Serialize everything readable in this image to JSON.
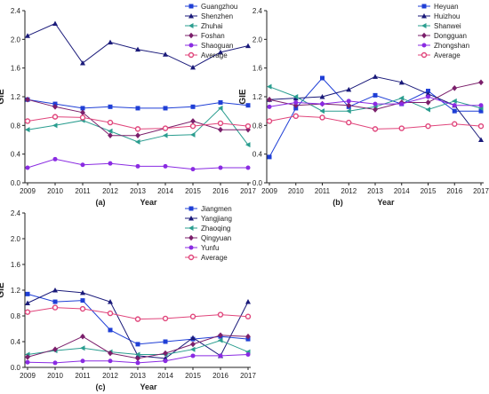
{
  "chart_data": [
    {
      "type": "line",
      "panel_label": "(a)",
      "xlabel": "Year",
      "ylabel": "GIE",
      "ylim": [
        0,
        2.4
      ],
      "yticks": [
        "0.0",
        "0.4",
        "0.8",
        "1.2",
        "1.6",
        "2.0",
        "2.4"
      ],
      "x": [
        "2009",
        "2010",
        "2011",
        "2012",
        "2013",
        "2014",
        "2015",
        "2016",
        "2017"
      ],
      "legend_position": "top-right",
      "series": [
        {
          "name": "Guangzhou",
          "color": "#1f3fd6",
          "marker": "square",
          "values": [
            1.16,
            1.1,
            1.04,
            1.06,
            1.04,
            1.04,
            1.06,
            1.12,
            1.08
          ]
        },
        {
          "name": "Shenzhen",
          "color": "#1a1a7a",
          "marker": "triangle-up",
          "values": [
            2.05,
            2.22,
            1.67,
            1.96,
            1.86,
            1.79,
            1.61,
            1.82,
            1.91
          ]
        },
        {
          "name": "Zhuhai",
          "color": "#2a9d8f",
          "marker": "triangle-left",
          "values": [
            0.74,
            0.8,
            0.87,
            0.72,
            0.57,
            0.66,
            0.67,
            1.04,
            0.53
          ]
        },
        {
          "name": "Foshan",
          "color": "#7b1f6b",
          "marker": "diamond",
          "values": [
            1.16,
            1.06,
            0.98,
            0.66,
            0.66,
            0.76,
            0.86,
            0.74,
            0.74
          ]
        },
        {
          "name": "Shaoguan",
          "color": "#8a2be2",
          "marker": "circle",
          "values": [
            0.21,
            0.33,
            0.25,
            0.27,
            0.23,
            0.23,
            0.19,
            0.21,
            0.21
          ]
        },
        {
          "name": "Average",
          "color": "#e0457b",
          "marker": "circle-open",
          "values": [
            0.86,
            0.92,
            0.91,
            0.84,
            0.75,
            0.76,
            0.79,
            0.83,
            0.79
          ]
        }
      ]
    },
    {
      "type": "line",
      "panel_label": "(b)",
      "xlabel": "Year",
      "ylabel": "GIE",
      "ylim": [
        0,
        2.4
      ],
      "yticks": [
        "0.0",
        "0.4",
        "0.8",
        "1.2",
        "1.6",
        "2.0",
        "2.4"
      ],
      "x": [
        "2009",
        "2010",
        "2011",
        "2012",
        "2013",
        "2014",
        "2015",
        "2016",
        "2017"
      ],
      "legend_position": "top-right",
      "series": [
        {
          "name": "Heyuan",
          "color": "#1f3fd6",
          "marker": "square",
          "values": [
            0.36,
            1.04,
            1.46,
            1.06,
            1.22,
            1.1,
            1.28,
            1.0,
            1.0
          ]
        },
        {
          "name": "Huizhou",
          "color": "#1a1a7a",
          "marker": "triangle-up",
          "values": [
            1.16,
            1.18,
            1.2,
            1.3,
            1.48,
            1.4,
            1.24,
            1.08,
            0.6
          ]
        },
        {
          "name": "Shanwei",
          "color": "#2a9d8f",
          "marker": "triangle-left",
          "values": [
            1.34,
            1.2,
            1.0,
            1.0,
            1.06,
            1.18,
            1.02,
            1.14,
            1.04
          ]
        },
        {
          "name": "Dongguan",
          "color": "#7b1f6b",
          "marker": "diamond",
          "values": [
            1.16,
            1.08,
            1.1,
            1.08,
            1.02,
            1.12,
            1.12,
            1.32,
            1.4
          ]
        },
        {
          "name": "Zhongshan",
          "color": "#8a2be2",
          "marker": "circle",
          "values": [
            1.06,
            1.12,
            1.1,
            1.14,
            1.1,
            1.1,
            1.2,
            1.08,
            1.08
          ]
        },
        {
          "name": "Average",
          "color": "#e0457b",
          "marker": "circle-open",
          "values": [
            0.86,
            0.93,
            0.91,
            0.84,
            0.75,
            0.76,
            0.79,
            0.82,
            0.79
          ]
        }
      ]
    },
    {
      "type": "line",
      "panel_label": "(c)",
      "xlabel": "Year",
      "ylabel": "GIE",
      "ylim": [
        0,
        2.4
      ],
      "yticks": [
        "0.0",
        "0.4",
        "0.8",
        "1.2",
        "1.6",
        "2.0",
        "2.4"
      ],
      "x": [
        "2009",
        "2010",
        "2011",
        "2012",
        "2013",
        "2014",
        "2015",
        "2016",
        "2017"
      ],
      "legend_position": "top-right",
      "series": [
        {
          "name": "Jiangmen",
          "color": "#1f3fd6",
          "marker": "square",
          "values": [
            1.14,
            1.02,
            1.04,
            0.58,
            0.36,
            0.4,
            0.44,
            0.48,
            0.44
          ]
        },
        {
          "name": "Yangjiang",
          "color": "#1a1a7a",
          "marker": "triangle-up",
          "values": [
            1.0,
            1.2,
            1.16,
            1.02,
            0.18,
            0.14,
            0.46,
            0.18,
            1.02
          ]
        },
        {
          "name": "Zhaoqing",
          "color": "#2a9d8f",
          "marker": "triangle-left",
          "values": [
            0.2,
            0.26,
            0.3,
            0.24,
            0.2,
            0.2,
            0.28,
            0.42,
            0.24
          ]
        },
        {
          "name": "Qingyuan",
          "color": "#7b1f6b",
          "marker": "diamond",
          "values": [
            0.16,
            0.28,
            0.48,
            0.22,
            0.14,
            0.22,
            0.36,
            0.5,
            0.48
          ]
        },
        {
          "name": "Yunfu",
          "color": "#8a2be2",
          "marker": "circle",
          "values": [
            0.08,
            0.07,
            0.1,
            0.1,
            0.07,
            0.1,
            0.18,
            0.18,
            0.2
          ]
        },
        {
          "name": "Average",
          "color": "#e0457b",
          "marker": "circle-open",
          "values": [
            0.86,
            0.93,
            0.91,
            0.84,
            0.75,
            0.76,
            0.79,
            0.82,
            0.79
          ]
        }
      ]
    }
  ]
}
